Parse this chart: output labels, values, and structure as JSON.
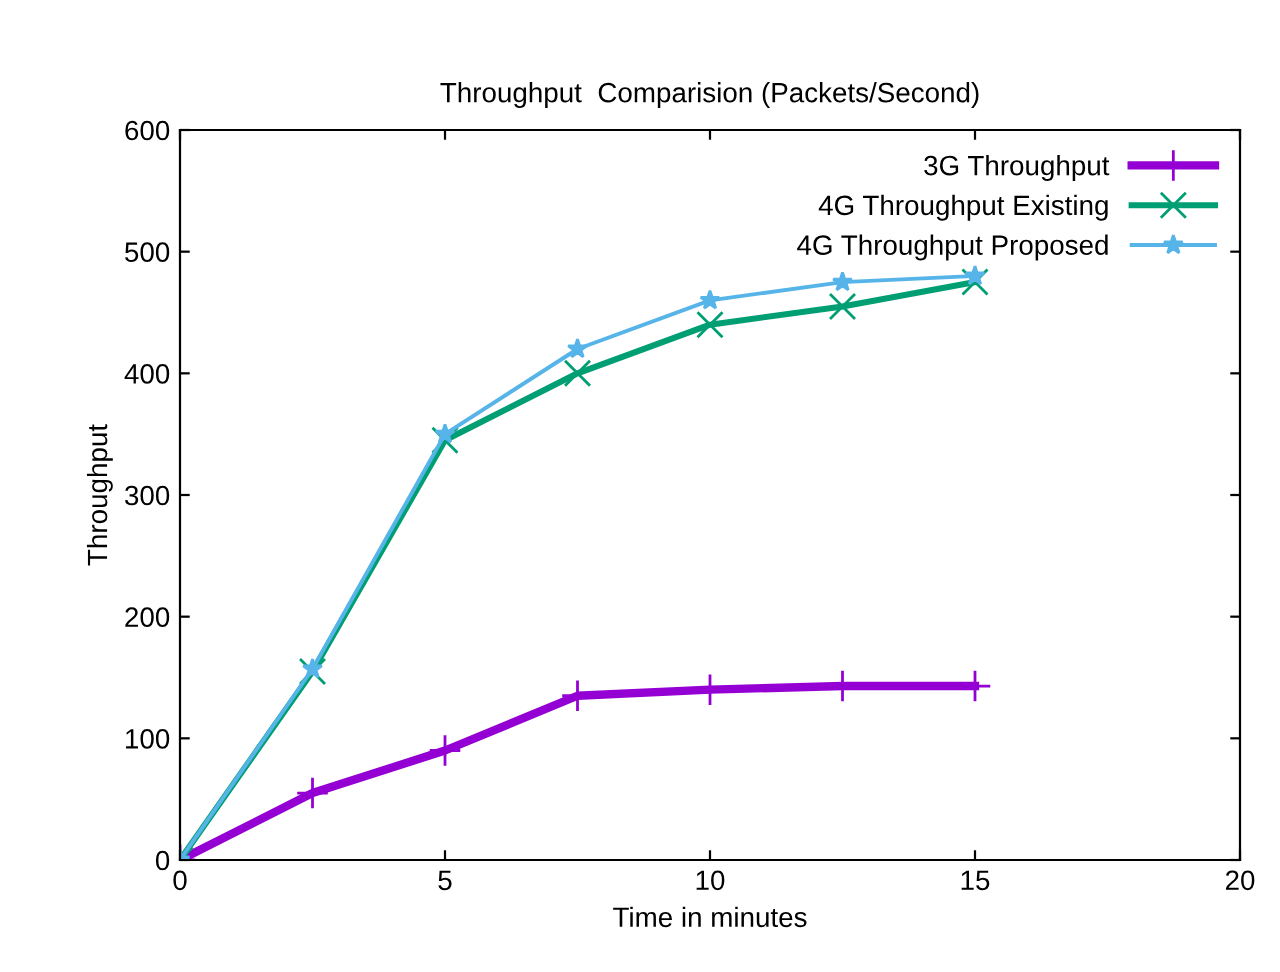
{
  "chart_data": {
    "type": "line",
    "title": "Throughput  Comparision (Packets/Second)",
    "xlabel": "Time in minutes",
    "ylabel": "Throughput",
    "x": [
      0,
      2.5,
      5,
      7.5,
      10,
      12.5,
      15
    ],
    "series": [
      {
        "name": "3G Throughput",
        "color": "#9400d3",
        "marker": "plus",
        "values": [
          0,
          55,
          90,
          135,
          140,
          143,
          143
        ]
      },
      {
        "name": "4G Throughput Existing",
        "color": "#009e73",
        "marker": "cross",
        "values": [
          0,
          155,
          345,
          400,
          440,
          455,
          475
        ]
      },
      {
        "name": "4G Throughput Proposed",
        "color": "#56b4e9",
        "marker": "star",
        "values": [
          0,
          157,
          350,
          420,
          460,
          475,
          480
        ]
      }
    ],
    "xlim": [
      0,
      20
    ],
    "xticks": [
      0,
      5,
      10,
      15,
      20
    ],
    "ylim": [
      0,
      600
    ],
    "yticks": [
      0,
      100,
      200,
      300,
      400,
      500,
      600
    ],
    "grid": false,
    "legend": "top right",
    "line_style": "solid"
  }
}
